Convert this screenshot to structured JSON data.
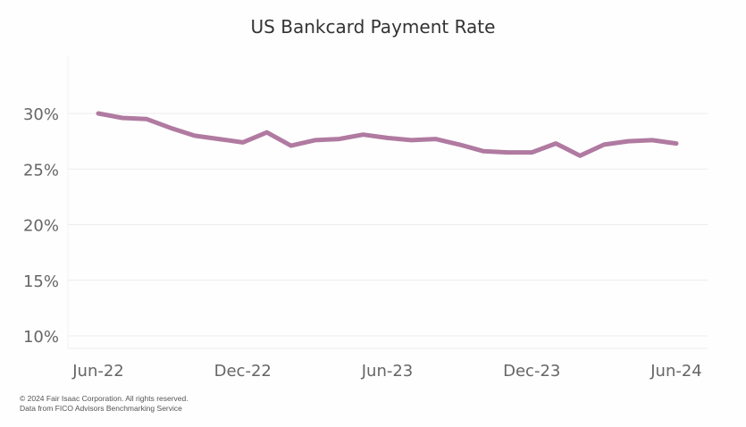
{
  "chart_data": {
    "type": "line",
    "title": "US Bankcard Payment Rate",
    "xlabel": "",
    "ylabel": "",
    "x": [
      "Jun-22",
      "Jul-22",
      "Aug-22",
      "Sep-22",
      "Oct-22",
      "Nov-22",
      "Dec-22",
      "Jan-23",
      "Feb-23",
      "Mar-23",
      "Apr-23",
      "May-23",
      "Jun-23",
      "Jul-23",
      "Aug-23",
      "Sep-23",
      "Oct-23",
      "Nov-23",
      "Dec-23",
      "Jan-24",
      "Feb-24",
      "Mar-24",
      "Apr-24",
      "May-24",
      "Jun-24"
    ],
    "x_tick_labels": [
      "Jun-22",
      "Dec-22",
      "Jun-23",
      "Dec-23",
      "Jun-24"
    ],
    "y_tick_labels": [
      "10%",
      "15%",
      "20%",
      "25%",
      "30%"
    ],
    "ylim": [
      9,
      32
    ],
    "grid": true,
    "series": [
      {
        "values": [
          30.0,
          29.6,
          29.5,
          28.7,
          28.0,
          27.7,
          27.4,
          28.3,
          27.1,
          27.6,
          27.7,
          28.1,
          27.8,
          27.6,
          27.7,
          27.2,
          26.6,
          26.5,
          26.5,
          27.3,
          26.2,
          27.2,
          27.5,
          27.6,
          27.3
        ],
        "color": "#b07aa1"
      }
    ]
  },
  "footer": {
    "copyright": "© 2024 Fair Isaac Corporation. All rights reserved.",
    "source": "Data from FICO Advisors Benchmarking Service"
  },
  "colors": {
    "line": "#b07aa1",
    "grid": "#ececec",
    "axis_text": "#666666"
  }
}
